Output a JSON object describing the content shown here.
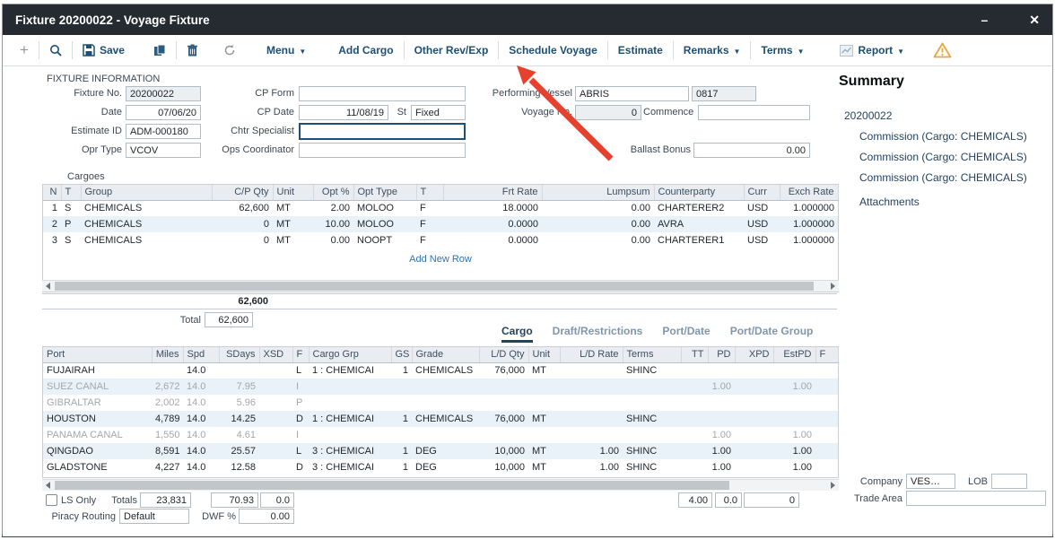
{
  "window": {
    "title": "Fixture 20200022 - Voyage Fixture",
    "minimize": "–",
    "close": "✕"
  },
  "colors": {
    "titlebar": "#262b31",
    "toolbar_text": "#1d4f74",
    "link": "#2e74b5",
    "active_tab": "#24425f",
    "warning": "#e9a83c",
    "arrow": "#e8402e",
    "row_alt": "#e9f2f8"
  },
  "toolbar": {
    "new": "+",
    "save": "Save",
    "menu": "Menu",
    "add_cargo": "Add Cargo",
    "other_rev_exp": "Other Rev/Exp",
    "schedule_voyage": "Schedule Voyage",
    "estimate": "Estimate",
    "remarks": "Remarks",
    "terms": "Terms",
    "report": "Report",
    "caret": "▼"
  },
  "fixture_info": {
    "section_title": "FIXTURE INFORMATION",
    "fixture_no_label": "Fixture No.",
    "fixture_no": "20200022",
    "date_label": "Date",
    "date": "07/06/20",
    "estimate_id_label": "Estimate ID",
    "estimate_id": "ADM-000180",
    "opr_type_label": "Opr Type",
    "opr_type": "VCOV",
    "cp_form_label": "CP Form",
    "cp_form": "",
    "cp_date_label": "CP Date",
    "cp_date": "11/08/19",
    "st_label": "St",
    "st": "Fixed",
    "chtr_specialist_label": "Chtr Specialist",
    "chtr_specialist": "",
    "ops_coordinator_label": "Ops Coordinator",
    "ops_coordinator": "",
    "performing_vessel_label": "Performing Vessel",
    "performing_vessel": "ABRIS",
    "vessel_code": "0817",
    "voyage_no_label": "Voyage No.",
    "voyage_no": "0",
    "commence_label": "Commence",
    "commence": "",
    "ballast_bonus_label": "Ballast Bonus",
    "ballast_bonus": "0.00"
  },
  "cargoes": {
    "section_title": "Cargoes",
    "headers": [
      "N",
      "T",
      "Group",
      "C/P Qty",
      "Unit",
      "Opt %",
      "Opt Type",
      "T",
      "Frt Rate",
      "Lumpsum",
      "Counterparty",
      "Curr",
      "Exch Rate"
    ],
    "rows": [
      [
        "1",
        "S",
        "CHEMICALS",
        "62,600",
        "MT",
        "2.00",
        "MOLOO",
        "F",
        "18.0000",
        "0.00",
        "CHARTERER2",
        "USD",
        "1.000000"
      ],
      [
        "2",
        "P",
        "CHEMICALS",
        "0",
        "MT",
        "10.00",
        "MOLOO",
        "F",
        "0.0000",
        "0.00",
        "AVRA",
        "USD",
        "1.000000"
      ],
      [
        "3",
        "S",
        "CHEMICALS",
        "0",
        "MT",
        "0.00",
        "NOOPT",
        "F",
        "0.0000",
        "0.00",
        "CHARTERER1",
        "USD",
        "1.000000"
      ]
    ],
    "add_new_row": "Add New Row",
    "qty_sum": "62,600",
    "total_label": "Total",
    "total_value": "62,600"
  },
  "tabs": [
    {
      "label": "Cargo",
      "active": true
    },
    {
      "label": "Draft/Restrictions",
      "active": false
    },
    {
      "label": "Port/Date",
      "active": false
    },
    {
      "label": "Port/Date Group",
      "active": false
    }
  ],
  "itinerary": {
    "headers": [
      "Port",
      "Miles",
      "Spd",
      "SDays",
      "XSD",
      "F",
      "Cargo Grp",
      "GS",
      "Grade",
      "L/D Qty",
      "Unit",
      "L/D Rate",
      "Terms",
      "TT",
      "PD",
      "XPD",
      "EstPD",
      "F"
    ],
    "rows": [
      {
        "muted": false,
        "cells": [
          "FUJAIRAH",
          "",
          "14.0",
          "",
          "",
          "L",
          "1 : CHEMICAI",
          "1",
          "CHEMICALS",
          "76,000",
          "MT",
          "",
          "SHINC",
          "",
          "",
          "",
          "",
          ""
        ]
      },
      {
        "muted": true,
        "cells": [
          "SUEZ CANAL",
          "2,672",
          "14.0",
          "7.95",
          "",
          "I",
          "",
          "",
          "",
          "",
          "",
          "",
          "",
          "",
          "1.00",
          "",
          "1.00",
          ""
        ]
      },
      {
        "muted": true,
        "cells": [
          "GIBRALTAR",
          "2,002",
          "14.0",
          "5.96",
          "",
          "P",
          "",
          "",
          "",
          "",
          "",
          "",
          "",
          "",
          "",
          "",
          "",
          ""
        ]
      },
      {
        "muted": false,
        "cells": [
          "HOUSTON",
          "4,789",
          "14.0",
          "14.25",
          "",
          "D",
          "1 : CHEMICAI",
          "1",
          "CHEMICALS",
          "76,000",
          "MT",
          "",
          "SHINC",
          "",
          "",
          "",
          "",
          ""
        ]
      },
      {
        "muted": true,
        "cells": [
          "PANAMA CANAL",
          "1,550",
          "14.0",
          "4.61",
          "",
          "I",
          "",
          "",
          "",
          "",
          "",
          "",
          "",
          "",
          "1.00",
          "",
          "1.00",
          ""
        ]
      },
      {
        "muted": false,
        "cells": [
          "QINGDAO",
          "8,591",
          "14.0",
          "25.57",
          "",
          "L",
          "3 : CHEMICAI",
          "1",
          "DEG",
          "10,000",
          "MT",
          "1.00",
          "SHINC",
          "",
          "1.00",
          "",
          "1.00",
          ""
        ]
      },
      {
        "muted": false,
        "cells": [
          "GLADSTONE",
          "4,227",
          "14.0",
          "12.58",
          "",
          "D",
          "3 : CHEMICAI",
          "1",
          "DEG",
          "10,000",
          "MT",
          "1.00",
          "SHINC",
          "",
          "1.00",
          "",
          "1.00",
          ""
        ]
      }
    ]
  },
  "bottom": {
    "ls_only_label": "LS Only",
    "totals_label": "Totals",
    "miles_total": "23,831",
    "sdays_total": "70.93",
    "xsd_total": "0.0",
    "tt_total": "4.00",
    "pd_total": "0.0",
    "xpd_total": "0",
    "piracy_label": "Piracy Routing",
    "piracy_value": "Default",
    "dwf_label": "DWF %",
    "dwf_value": "0.00",
    "company_label": "Company",
    "company_value": "VES…",
    "lob_label": "LOB",
    "lob_value": "",
    "trade_area_label": "Trade Area",
    "trade_area_value": ""
  },
  "summary": {
    "title": "Summary",
    "fixture_id": "20200022",
    "items": [
      "Commission (Cargo: CHEMICALS)",
      "Commission (Cargo: CHEMICALS)",
      "Commission (Cargo: CHEMICALS)"
    ],
    "attachments": "Attachments"
  }
}
